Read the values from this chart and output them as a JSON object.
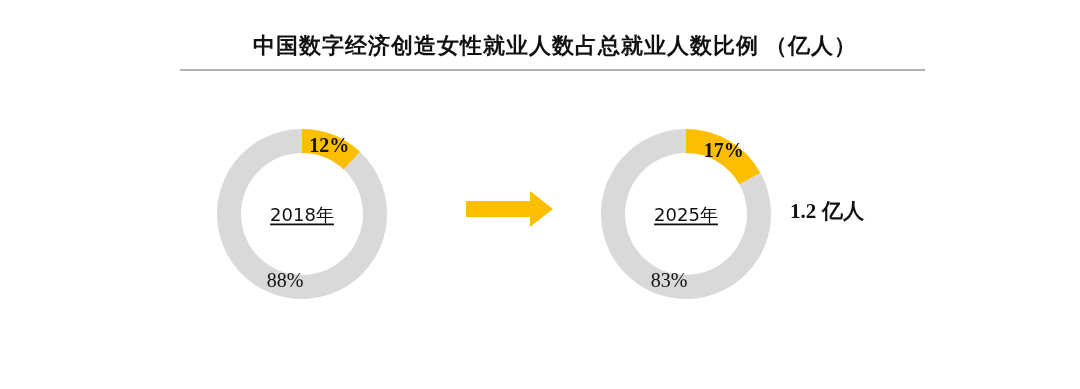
{
  "chart_data": [
    {
      "type": "donut",
      "title": "中国数字经济创造女性就业人数占总就业人数比例 （亿人）",
      "categories": [
        null,
        null
      ],
      "values": [
        12,
        88
      ],
      "colors": [
        "#fbbf00",
        "#d9d9d9"
      ],
      "value_labels": [
        "12%",
        "88%"
      ],
      "annotations": [
        "2018年"
      ]
    },
    {
      "type": "donut",
      "categories": [
        null,
        null
      ],
      "values": [
        17,
        83
      ],
      "colors": [
        "#fbbf00",
        "#d9d9d9"
      ],
      "value_labels": [
        "17%",
        "83%"
      ],
      "annotations": [
        "2025年",
        "1.2 亿人"
      ]
    }
  ]
}
